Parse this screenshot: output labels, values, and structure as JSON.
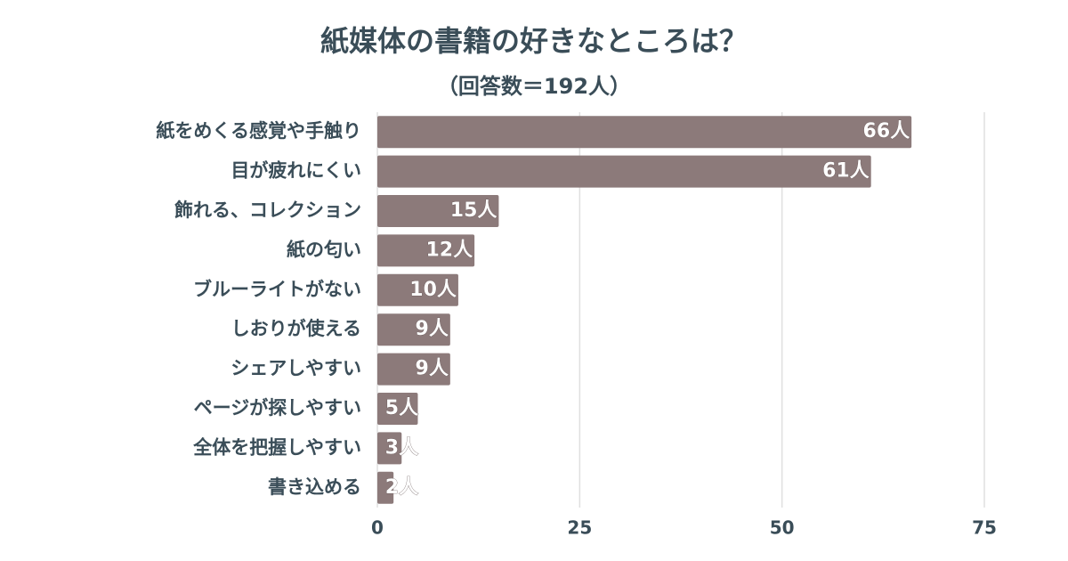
{
  "chart_data": {
    "type": "bar",
    "orientation": "horizontal",
    "title": "紙媒体の書籍の好きなところは？",
    "subtitle": "（回答数＝192人）",
    "categories": [
      "紙をめくる感覚や手触り",
      "目が疲れにくい",
      "飾れる、コレクション",
      "紙の匂い",
      "ブルーライトがない",
      "しおりが使える",
      "シェアしやすい",
      "ページが探しやすい",
      "全体を把握しやすい",
      "書き込める"
    ],
    "values": [
      66,
      61,
      15,
      12,
      10,
      9,
      9,
      5,
      3,
      2
    ],
    "value_labels": [
      "66人",
      "61人",
      "15人",
      "12人",
      "10人",
      "9人",
      "9人",
      "5人",
      "3人",
      "2人"
    ],
    "color": "#8c7a7a",
    "xlim": [
      0,
      75
    ],
    "xticks": [
      0,
      25,
      50,
      75
    ],
    "grid": true
  }
}
